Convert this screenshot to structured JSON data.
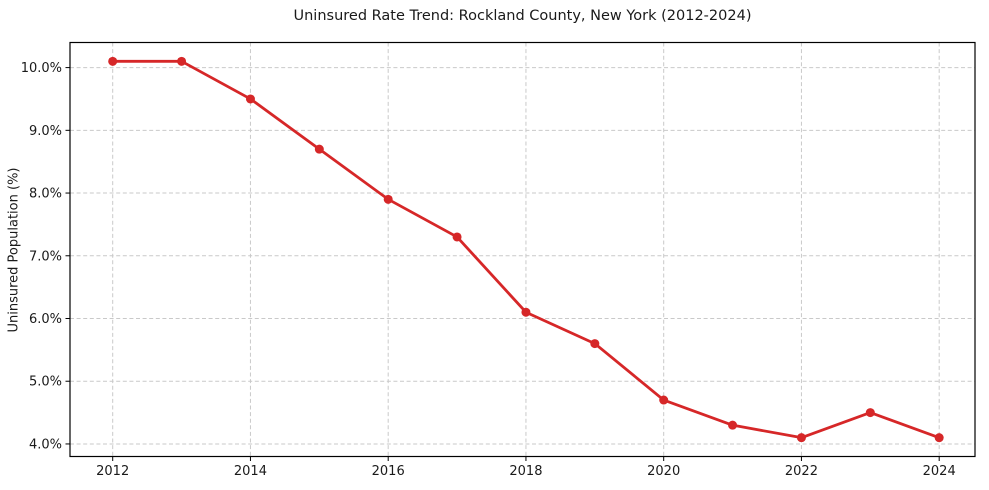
{
  "chart_data": {
    "type": "line",
    "title": "Uninsured Rate Trend: Rockland County, New York (2012-2024)",
    "xlabel": "",
    "ylabel": "Uninsured Population (%)",
    "x": [
      2012,
      2013,
      2014,
      2015,
      2016,
      2017,
      2018,
      2019,
      2020,
      2021,
      2022,
      2023,
      2024
    ],
    "values": [
      10.1,
      10.1,
      9.5,
      8.7,
      7.9,
      7.3,
      6.1,
      5.6,
      4.7,
      4.3,
      4.1,
      4.5,
      4.1
    ],
    "value_unit": "%",
    "xticks": [
      2012,
      2014,
      2016,
      2018,
      2020,
      2022,
      2024
    ],
    "xtick_labels": [
      "2012",
      "2014",
      "2016",
      "2018",
      "2020",
      "2022",
      "2024"
    ],
    "yticks": [
      4,
      5,
      6,
      7,
      8,
      9,
      10
    ],
    "ytick_labels": [
      "4.0%",
      "5.0%",
      "6.0%",
      "7.0%",
      "8.0%",
      "9.0%",
      "10.0%"
    ],
    "xlim": [
      2011.38,
      2024.52
    ],
    "ylim": [
      3.8,
      10.4
    ],
    "grid": true,
    "grid_style": "dashed",
    "legend": false,
    "colors": {
      "line": "#d62728",
      "marker": "#d62728",
      "grid": "#c9c9c9",
      "axis": "#000000",
      "text": "#1a1a1a",
      "background": "#ffffff"
    }
  }
}
